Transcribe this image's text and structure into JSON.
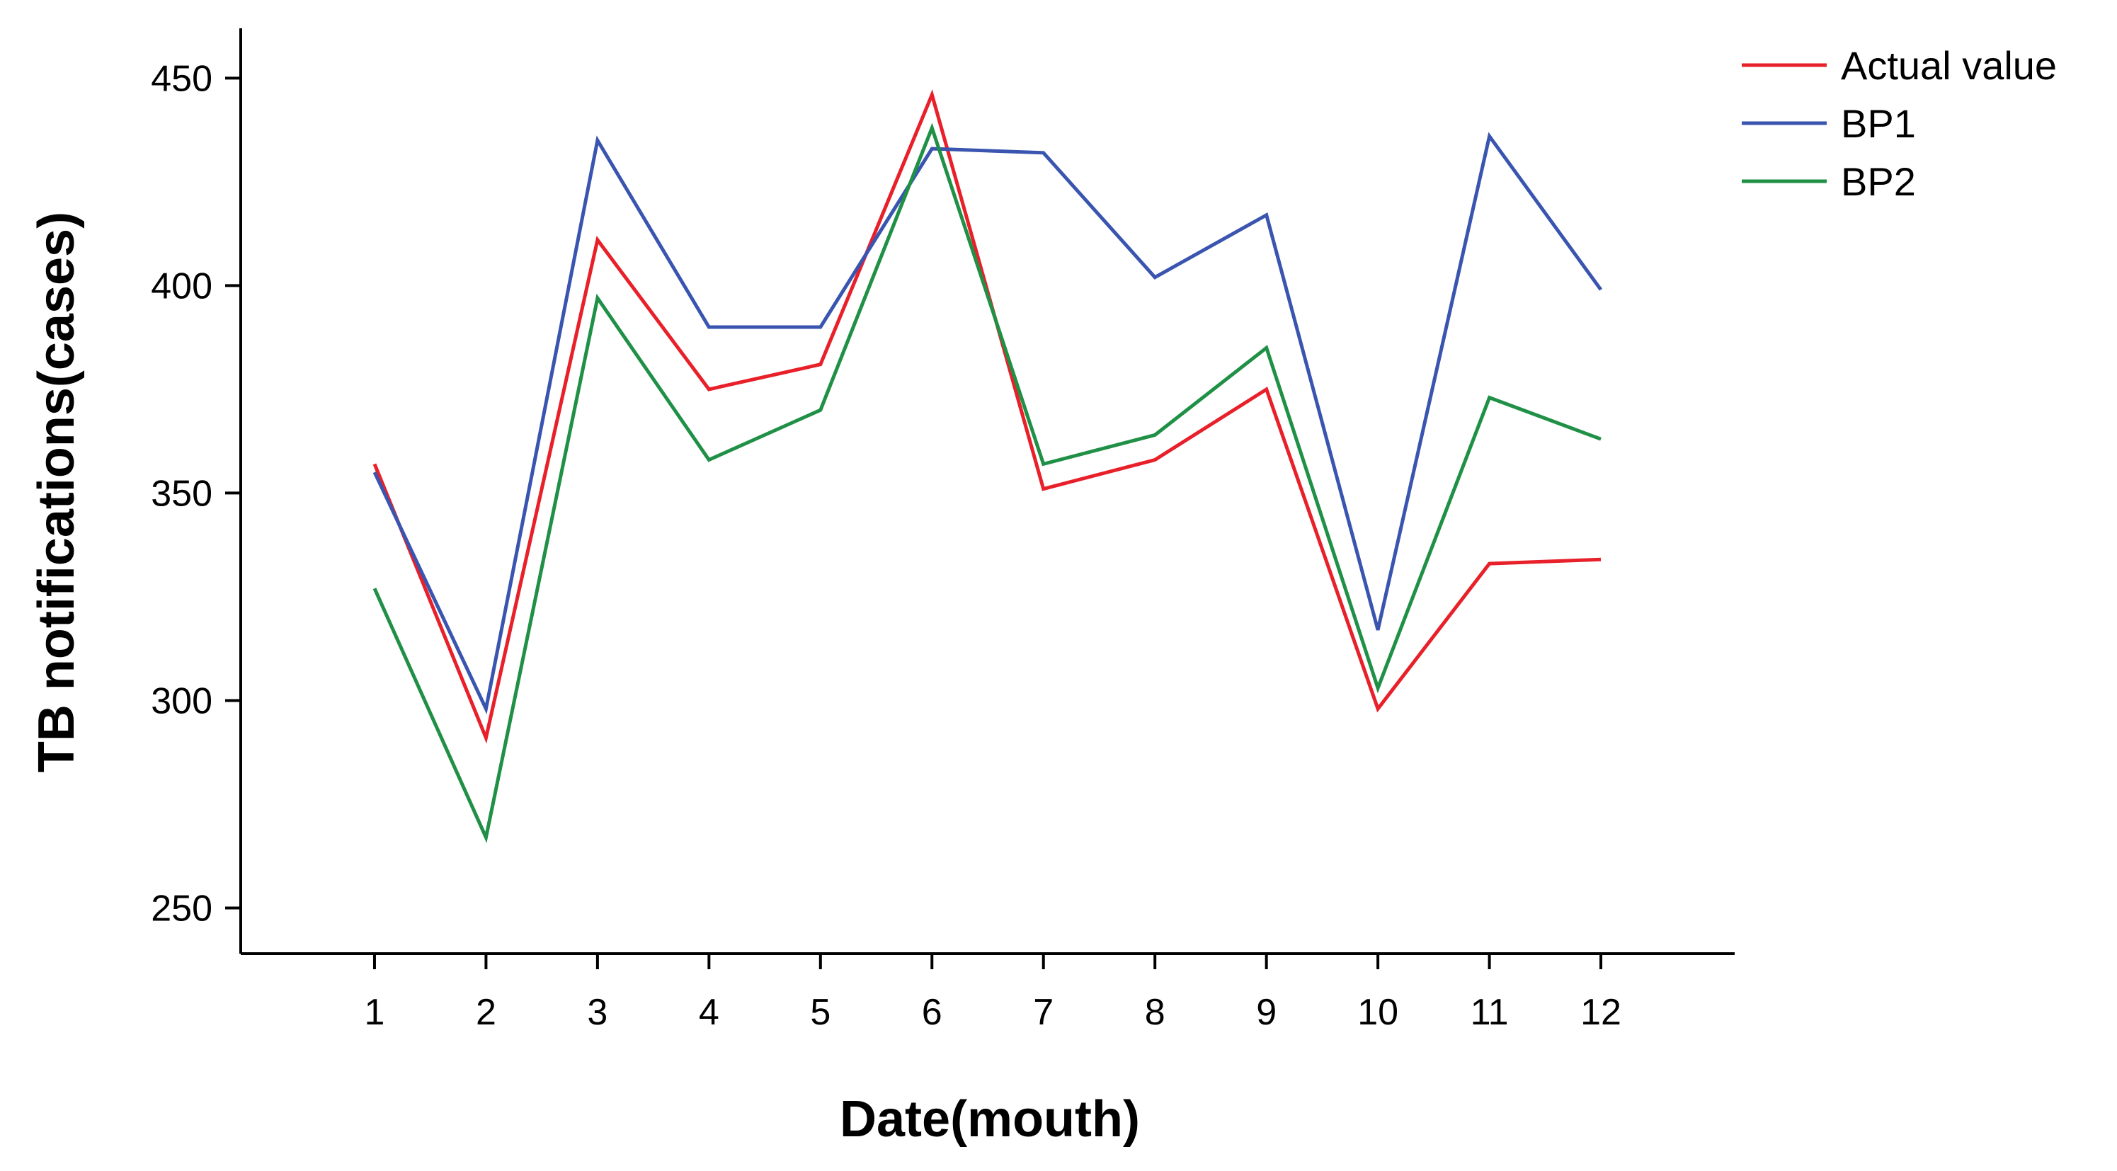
{
  "chart_data": {
    "type": "line",
    "x": [
      1,
      2,
      3,
      4,
      5,
      6,
      7,
      8,
      9,
      10,
      11,
      12
    ],
    "x_tick_labels": [
      "1",
      "2",
      "3",
      "4",
      "5",
      "6",
      "7",
      "8",
      "9",
      "10",
      "11",
      "12"
    ],
    "y_ticks": [
      250,
      300,
      350,
      400,
      450
    ],
    "y_tick_labels": [
      "250",
      "300",
      "350",
      "400",
      "450"
    ],
    "xlabel": "Date(mouth)",
    "ylabel": "TB notifications(cases)",
    "xlim": [
      -0.2,
      13.2
    ],
    "ylim": [
      239,
      462
    ],
    "grid": false,
    "legend_position": "top-right",
    "series": [
      {
        "name": "Actual value",
        "color": "#e8202a",
        "values": [
          357,
          291,
          411,
          375,
          381,
          446,
          351,
          358,
          375,
          298,
          333,
          334
        ]
      },
      {
        "name": "BP1",
        "color": "#3a55b0",
        "values": [
          355,
          298,
          435,
          390,
          390,
          433,
          432,
          402,
          417,
          317,
          436,
          399
        ]
      },
      {
        "name": "BP2",
        "color": "#1f9046",
        "values": [
          327,
          267,
          397,
          358,
          370,
          438,
          357,
          364,
          385,
          303,
          373,
          363
        ]
      }
    ]
  }
}
